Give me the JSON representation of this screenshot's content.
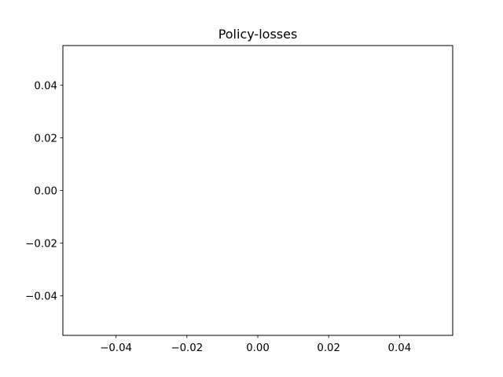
{
  "chart_data": {
    "type": "line",
    "title": "Policy-losses",
    "xlabel": "",
    "ylabel": "",
    "series": [
      {
        "x": [],
        "y": []
      }
    ],
    "xlim": [
      -0.055,
      0.055
    ],
    "ylim": [
      -0.055,
      0.055
    ],
    "x_ticks": [
      -0.04,
      -0.02,
      0.0,
      0.02,
      0.04
    ],
    "x_tick_labels": [
      "−0.04",
      "−0.02",
      "0.00",
      "0.02",
      "0.04"
    ],
    "y_ticks": [
      -0.04,
      -0.02,
      0.0,
      0.02,
      0.04
    ],
    "y_tick_labels": [
      "−0.04",
      "−0.02",
      "0.00",
      "0.02",
      "0.04"
    ],
    "grid": false,
    "legend": "none",
    "colors": {
      "axes": "#000000",
      "background": "#ffffff"
    }
  }
}
